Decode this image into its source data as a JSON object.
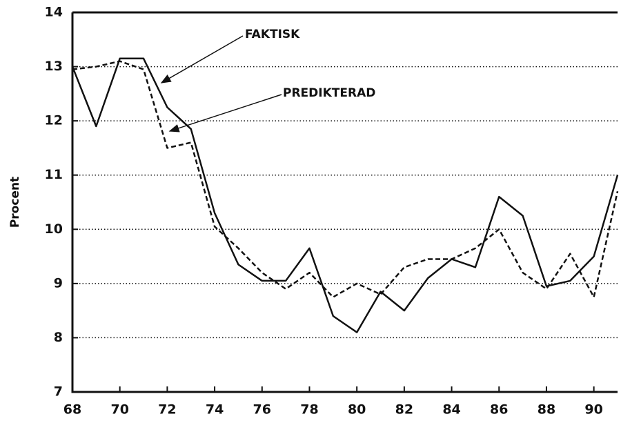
{
  "chart_data": {
    "type": "line",
    "y_label": "Procent",
    "annotations": [
      "FAKTISK",
      "PREDIKTERAD"
    ],
    "x": [
      68,
      69,
      70,
      71,
      72,
      73,
      74,
      75,
      76,
      77,
      78,
      79,
      80,
      81,
      82,
      83,
      84,
      85,
      86,
      87,
      88,
      89,
      90,
      91
    ],
    "series": [
      {
        "name": "FAKTISK",
        "color": "#111111",
        "dash": "solid",
        "values": [
          13.0,
          11.9,
          13.15,
          13.15,
          12.25,
          11.85,
          10.3,
          9.35,
          9.05,
          9.05,
          9.65,
          8.4,
          8.1,
          8.85,
          8.5,
          9.1,
          9.45,
          9.3,
          10.6,
          10.25,
          8.95,
          9.05,
          9.5,
          11.0
        ]
      },
      {
        "name": "PREDIKTERAD",
        "color": "#111111",
        "dash": "dashed",
        "values": [
          12.95,
          13.0,
          13.1,
          12.95,
          11.5,
          11.6,
          10.05,
          9.65,
          9.2,
          8.9,
          9.2,
          8.75,
          9.0,
          8.8,
          9.3,
          9.45,
          9.45,
          9.65,
          10.0,
          9.2,
          8.9,
          9.55,
          8.75,
          10.7
        ]
      }
    ],
    "xlim": [
      68,
      91
    ],
    "xticks": [
      68,
      70,
      72,
      74,
      76,
      78,
      80,
      82,
      84,
      86,
      88,
      90
    ],
    "ylim": [
      7,
      14
    ],
    "yticks": [
      7,
      8,
      9,
      10,
      11,
      12,
      13,
      14
    ],
    "grid": true
  }
}
